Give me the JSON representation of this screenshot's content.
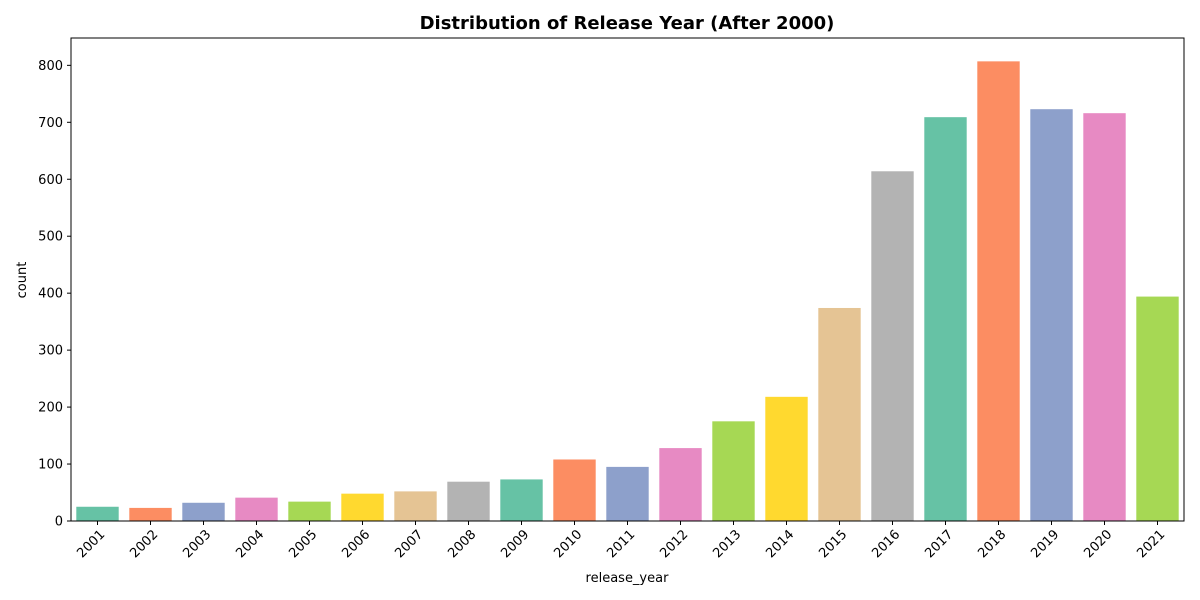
{
  "chart_data": {
    "type": "bar",
    "title": "Distribution of Release Year (After 2000)",
    "xlabel": "release_year",
    "ylabel": "count",
    "categories": [
      "2001",
      "2002",
      "2003",
      "2004",
      "2005",
      "2006",
      "2007",
      "2008",
      "2009",
      "2010",
      "2011",
      "2012",
      "2013",
      "2014",
      "2015",
      "2016",
      "2017",
      "2018",
      "2019",
      "2020",
      "2021"
    ],
    "values": [
      25,
      23,
      32,
      41,
      34,
      48,
      52,
      69,
      73,
      108,
      95,
      128,
      175,
      218,
      374,
      614,
      709,
      807,
      723,
      716,
      394
    ],
    "ylim": [
      0,
      848
    ],
    "yticks": [
      0,
      100,
      200,
      300,
      400,
      500,
      600,
      700,
      800
    ],
    "grid": false,
    "xtick_rotation": -45,
    "palette": [
      "#66c2a5",
      "#fc8d62",
      "#8da0cb",
      "#e78ac3",
      "#a6d854",
      "#ffd92f",
      "#e5c494",
      "#b3b3b3"
    ]
  }
}
